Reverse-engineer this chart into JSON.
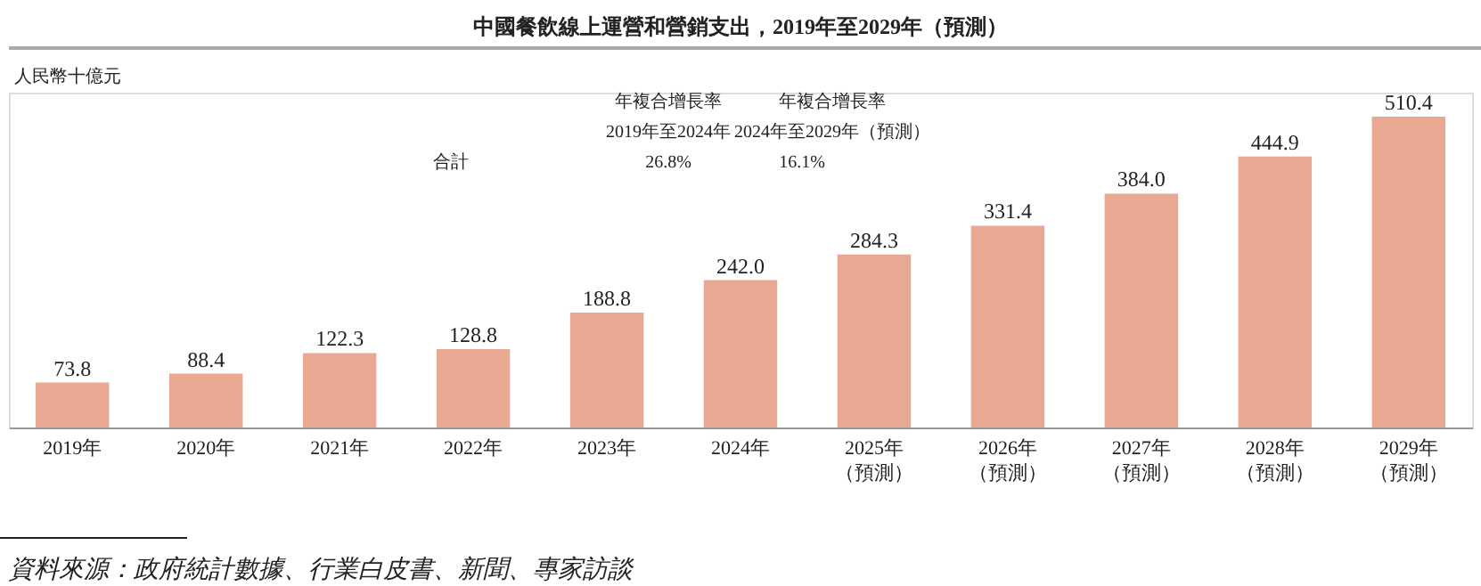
{
  "chart_data": {
    "type": "bar",
    "title": "中國餐飲線上運營和營銷支出，2019年至2029年（預測）",
    "ylabel": "人民幣十億元",
    "categories": [
      "2019年",
      "2020年",
      "2021年",
      "2022年",
      "2023年",
      "2024年",
      "2025年（預測）",
      "2026年（預測）",
      "2027年（預測）",
      "2028年（預測）",
      "2029年（預測）"
    ],
    "values": [
      73.8,
      88.4,
      122.3,
      128.8,
      188.8,
      242.0,
      284.3,
      331.4,
      384.0,
      444.9,
      510.4
    ],
    "value_labels": [
      "73.8",
      "88.4",
      "122.3",
      "128.8",
      "188.8",
      "242.0",
      "284.3",
      "331.4",
      "384.0",
      "444.9",
      "510.4"
    ],
    "color": "#e8a892",
    "annotations": [
      "合計",
      "年複合增長率",
      "2019年至2024年",
      "26.8%",
      "年複合增長率",
      "2024年至2029年（預測）",
      "16.1%",
      "資料來源：政府統計數據、行業白皮書、新聞、專家訪談"
    ]
  }
}
